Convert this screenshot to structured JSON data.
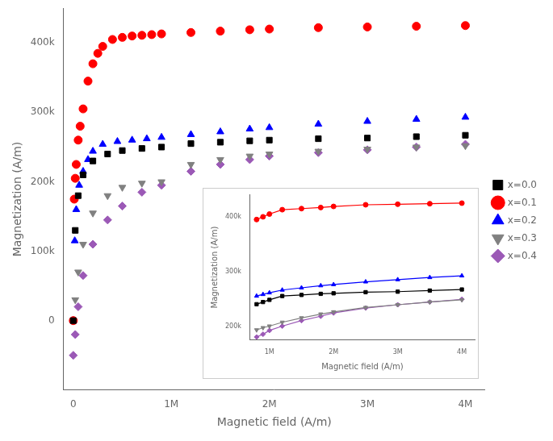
{
  "chart_data": [
    {
      "type": "scatter",
      "xlabel": "Magnetic field (A/m)",
      "ylabel": "Magnetization (A/m)",
      "series": [
        {
          "name": "x=0.0",
          "color": "black",
          "marker": "square",
          "x": [
            0,
            20000,
            50000,
            100000,
            200000,
            350000,
            500000,
            700000,
            900000,
            1200000,
            1500000,
            1800000,
            2000000,
            2500000,
            3000000,
            3500000,
            4000000
          ],
          "values": [
            0,
            130000,
            180000,
            210000,
            230000,
            240000,
            245000,
            248000,
            250000,
            255000,
            257000,
            259000,
            260000,
            262000,
            263000,
            265000,
            267000
          ]
        },
        {
          "name": "x=0.1",
          "color": "red",
          "marker": "circle",
          "x": [
            0,
            10000,
            20000,
            30000,
            50000,
            70000,
            100000,
            150000,
            200000,
            250000,
            300000,
            400000,
            500000,
            600000,
            700000,
            800000,
            900000,
            1200000,
            1500000,
            1800000,
            2000000,
            2500000,
            3000000,
            3500000,
            4000000
          ],
          "values": [
            0,
            175000,
            205000,
            225000,
            260000,
            280000,
            305000,
            345000,
            370000,
            385000,
            395000,
            405000,
            408000,
            410000,
            411000,
            412000,
            413000,
            415000,
            417000,
            419000,
            420000,
            422000,
            423000,
            424000,
            425000
          ]
        },
        {
          "name": "x=0.2",
          "color": "blue",
          "marker": "triangle-up",
          "x": [
            0,
            15000,
            30000,
            60000,
            100000,
            150000,
            200000,
            300000,
            450000,
            600000,
            750000,
            900000,
            1200000,
            1500000,
            1800000,
            2000000,
            2500000,
            3000000,
            3500000,
            4000000
          ],
          "values": [
            0,
            115000,
            160000,
            195000,
            215000,
            232000,
            244000,
            254000,
            258000,
            260000,
            262000,
            264000,
            268000,
            272000,
            276000,
            278000,
            283000,
            287000,
            290000,
            293000
          ]
        },
        {
          "name": "x=0.3",
          "color": "gray",
          "marker": "triangle-down",
          "x": [
            0,
            20000,
            50000,
            100000,
            200000,
            350000,
            500000,
            700000,
            900000,
            1200000,
            1500000,
            1800000,
            2000000,
            2500000,
            3000000,
            3500000,
            4000000
          ],
          "values": [
            0,
            30000,
            70000,
            110000,
            155000,
            180000,
            192000,
            198000,
            200000,
            225000,
            232000,
            237000,
            240000,
            244000,
            247000,
            250000,
            252000
          ]
        },
        {
          "name": "x=0.4",
          "color": "#9B59B6",
          "marker": "diamond",
          "x": [
            0,
            20000,
            50000,
            100000,
            200000,
            350000,
            500000,
            700000,
            900000,
            1200000,
            1500000,
            1800000,
            2000000,
            2500000,
            3000000,
            3500000,
            4000000
          ],
          "values": [
            -50000,
            -20000,
            20000,
            65000,
            110000,
            145000,
            165000,
            185000,
            195000,
            215000,
            225000,
            232000,
            237000,
            242000,
            246000,
            250000,
            254000
          ]
        }
      ],
      "xlim": [
        -100000,
        4200000
      ],
      "ylim": [
        -100000,
        450000
      ],
      "xticks": [
        0,
        {
          "value": 1000000,
          "label": "1M"
        },
        {
          "value": 2000000,
          "label": "2M"
        },
        {
          "value": 3000000,
          "label": "3M"
        },
        {
          "value": 4000000,
          "label": "4M"
        }
      ],
      "yticks": [
        0,
        {
          "value": 100000,
          "label": "100k"
        },
        {
          "value": 200000,
          "label": "200k"
        },
        {
          "value": 300000,
          "label": "300k"
        },
        {
          "value": 400000,
          "label": "400k"
        }
      ],
      "legend": "right",
      "grid": false
    },
    {
      "type": "line",
      "xlabel": "Magnetic field (A/m)",
      "ylabel": "Magnetization (A/m)",
      "series": [
        {
          "color": "black",
          "marker": "square",
          "x": [
            800000,
            900000,
            1000000,
            1200000,
            1500000,
            1800000,
            2000000,
            2500000,
            3000000,
            3500000,
            4000000
          ],
          "values": [
            240000,
            244000,
            248000,
            255000,
            257000,
            259000,
            260000,
            262000,
            263000,
            265000,
            267000
          ]
        },
        {
          "color": "red",
          "marker": "circle",
          "x": [
            800000,
            900000,
            1000000,
            1200000,
            1500000,
            1800000,
            2000000,
            2500000,
            3000000,
            3500000,
            4000000
          ],
          "values": [
            395000,
            400000,
            405000,
            413000,
            415000,
            417000,
            419000,
            422000,
            423000,
            424000,
            425000
          ]
        },
        {
          "color": "blue",
          "marker": "triangle-up",
          "x": [
            800000,
            900000,
            1000000,
            1200000,
            1500000,
            1800000,
            2000000,
            2500000,
            3000000,
            3500000,
            4000000
          ],
          "values": [
            255000,
            258000,
            261000,
            266000,
            270000,
            274000,
            276000,
            281000,
            285000,
            289000,
            292000
          ]
        },
        {
          "color": "gray",
          "marker": "triangle-down",
          "x": [
            800000,
            900000,
            1000000,
            1200000,
            1500000,
            1800000,
            2000000,
            2500000,
            3000000,
            3500000,
            4000000
          ],
          "values": [
            193000,
            197000,
            200000,
            207000,
            215000,
            222000,
            226000,
            234000,
            239000,
            244000,
            248000
          ]
        },
        {
          "color": "#9B59B6",
          "marker": "diamond",
          "x": [
            800000,
            900000,
            1000000,
            1200000,
            1500000,
            1800000,
            2000000,
            2500000,
            3000000,
            3500000,
            4000000
          ],
          "values": [
            180000,
            185000,
            192000,
            200000,
            210000,
            218000,
            224000,
            233000,
            239000,
            244000,
            249000
          ]
        }
      ],
      "xlim": [
        700000,
        4200000
      ],
      "ylim": [
        175000,
        440000
      ],
      "xticks": [
        {
          "value": 1000000,
          "label": "1M"
        },
        {
          "value": 2000000,
          "label": "2M"
        },
        {
          "value": 3000000,
          "label": "3M"
        },
        {
          "value": 4000000,
          "label": "4M"
        }
      ],
      "yticks": [
        {
          "value": 200000,
          "label": "200k"
        },
        {
          "value": 300000,
          "label": "300k"
        },
        {
          "value": 400000,
          "label": "400k"
        }
      ],
      "grid": false
    }
  ]
}
